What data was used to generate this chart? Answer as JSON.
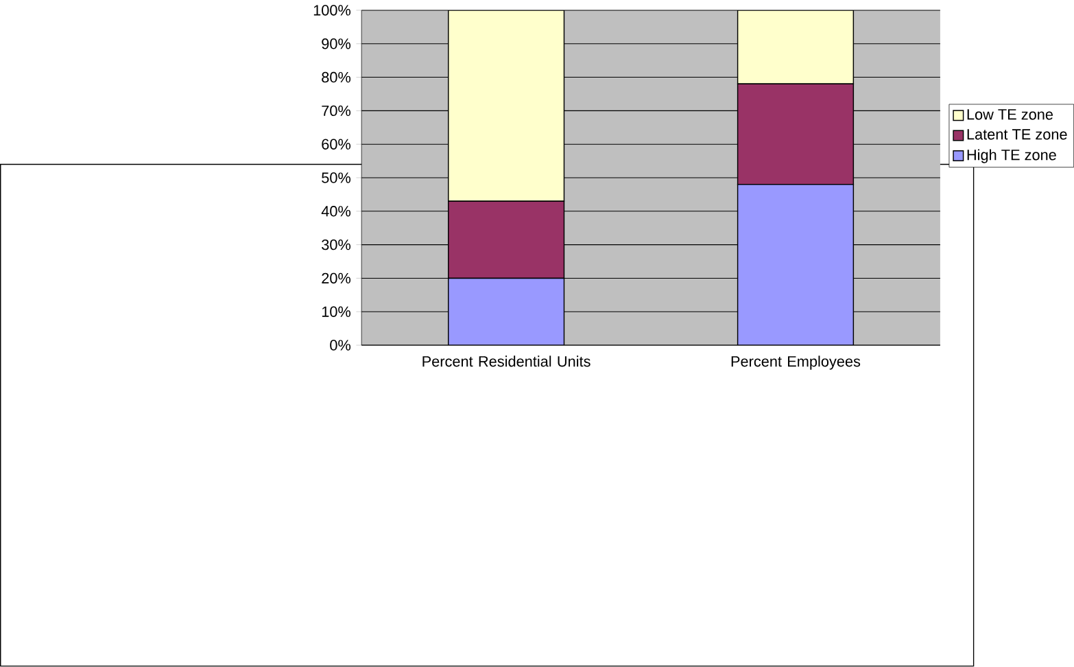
{
  "chart_data": {
    "type": "bar",
    "stacked": true,
    "categories": [
      "Percent Residential Units",
      "Percent Employees"
    ],
    "series": [
      {
        "name": "High TE zone",
        "color": "#9999ff",
        "values": [
          20,
          48
        ]
      },
      {
        "name": "Latent TE zone",
        "color": "#993366",
        "values": [
          23,
          30
        ]
      },
      {
        "name": "Low TE zone",
        "color": "#ffffcc",
        "values": [
          57,
          22
        ]
      }
    ],
    "ylim": [
      0,
      100
    ],
    "yticks": [
      {
        "value": 0,
        "label": "0%"
      },
      {
        "value": 10,
        "label": "10%"
      },
      {
        "value": 20,
        "label": "20%"
      },
      {
        "value": 30,
        "label": "30%"
      },
      {
        "value": 40,
        "label": "40%"
      },
      {
        "value": 50,
        "label": "50%"
      },
      {
        "value": 60,
        "label": "60%"
      },
      {
        "value": 70,
        "label": "70%"
      },
      {
        "value": 80,
        "label": "80%"
      },
      {
        "value": 90,
        "label": "90%"
      },
      {
        "value": 100,
        "label": "100%"
      }
    ],
    "grid": "y",
    "legend": "right"
  }
}
